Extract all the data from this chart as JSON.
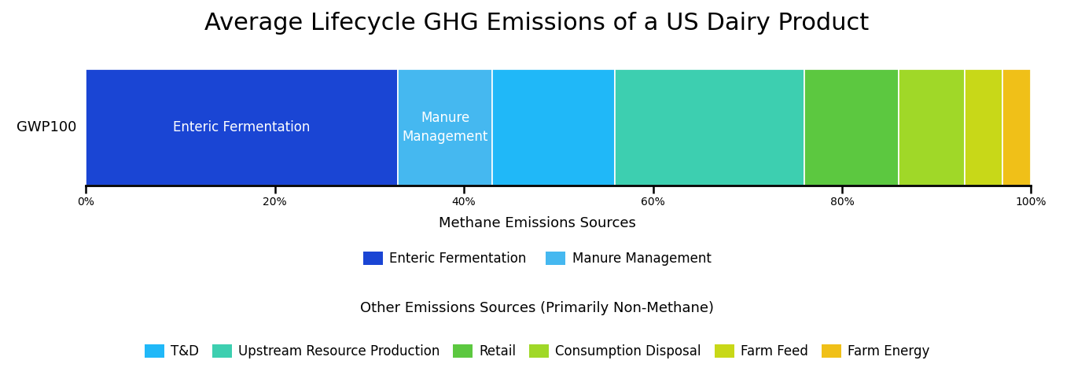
{
  "title": "Average Lifecycle GHG Emissions of a US Dairy Product",
  "y_label": "GWP100",
  "segments": [
    {
      "label": "Enteric Fermentation",
      "value": 33,
      "color": "#1a45d4",
      "text": "Enteric Fermentation"
    },
    {
      "label": "Manure Management",
      "value": 10,
      "color": "#45b8f0",
      "text": "Manure\nManagement"
    },
    {
      "label": "T&D",
      "value": 13,
      "color": "#20b8f8",
      "text": ""
    },
    {
      "label": "Upstream Resource Production",
      "value": 20,
      "color": "#3dcfb0",
      "text": ""
    },
    {
      "label": "Retail",
      "value": 10,
      "color": "#5cc840",
      "text": ""
    },
    {
      "label": "Consumption Disposal",
      "value": 7,
      "color": "#a0d828",
      "text": ""
    },
    {
      "label": "Farm Feed",
      "value": 4,
      "color": "#c8d818",
      "text": ""
    },
    {
      "label": "Farm Energy",
      "value": 3,
      "color": "#f0c018",
      "text": ""
    }
  ],
  "legend1_title": "Methane Emissions Sources",
  "legend1_items": [
    {
      "label": "Enteric Fermentation",
      "color": "#1a45d4"
    },
    {
      "label": "Manure Management",
      "color": "#45b8f0"
    }
  ],
  "legend2_title": "Other Emissions Sources (Primarily Non-Methane)",
  "legend2_items": [
    {
      "label": "T&D",
      "color": "#20b8f8"
    },
    {
      "label": "Upstream Resource Production",
      "color": "#3dcfb0"
    },
    {
      "label": "Retail",
      "color": "#5cc840"
    },
    {
      "label": "Consumption Disposal",
      "color": "#a0d828"
    },
    {
      "label": "Farm Feed",
      "color": "#c8d818"
    },
    {
      "label": "Farm Energy",
      "color": "#f0c018"
    }
  ],
  "xticks": [
    0,
    20,
    40,
    60,
    80,
    100
  ],
  "xtick_labels": [
    "0%",
    "20%",
    "40%",
    "60%",
    "80%",
    "100%"
  ],
  "background_color": "#ffffff",
  "bar_text_color": "#ffffff",
  "bar_text_fontsize": 12,
  "title_fontsize": 22,
  "ylabel_fontsize": 13,
  "xtick_fontsize": 13,
  "legend_fontsize": 12,
  "legend_title_fontsize": 13
}
